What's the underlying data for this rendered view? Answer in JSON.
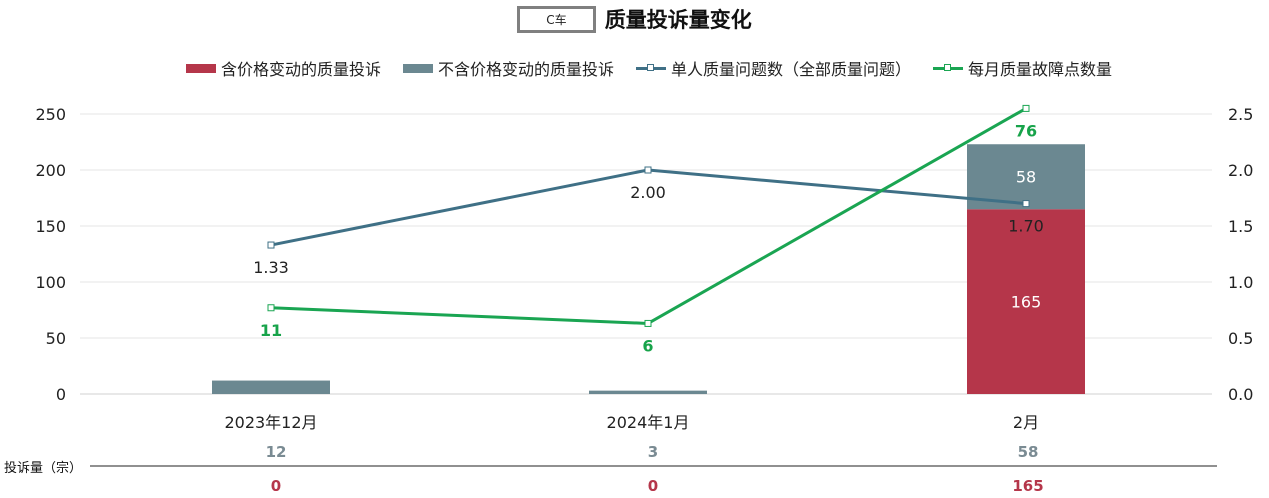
{
  "title": {
    "box_label": "C车",
    "text": "质量投诉量变化"
  },
  "legend": [
    {
      "label": "含价格变动的质量投诉",
      "color": "#b5364a",
      "kind": "bar"
    },
    {
      "label": "不含价格变动的质量投诉",
      "color": "#6b8891",
      "kind": "bar"
    },
    {
      "label": "单人质量问题数（全部质量问题）",
      "color": "#3f7086",
      "kind": "line"
    },
    {
      "label": "每月质量故障点数量",
      "color": "#1aa552",
      "kind": "line"
    }
  ],
  "table": {
    "row_label": "投诉量（宗）",
    "gray_row": [
      "12",
      "3",
      "58"
    ],
    "red_row": [
      "0",
      "0",
      "165"
    ]
  },
  "chart_data": {
    "type": "bar",
    "categories": [
      "2023年12月",
      "2024年1月",
      "2月"
    ],
    "left_axis": {
      "ylim": [
        0,
        250
      ],
      "ticks": [
        "0",
        "50",
        "100",
        "150",
        "200",
        "250"
      ]
    },
    "right_axis": {
      "ylim": [
        0,
        2.5
      ],
      "ticks": [
        "0.0",
        "0.5",
        "1.0",
        "1.5",
        "2.0",
        "2.5"
      ]
    },
    "series": [
      {
        "name": "含价格变动的质量投诉",
        "kind": "bar",
        "stack": "s",
        "axis": "left",
        "color": "#b5364a",
        "values": [
          0,
          0,
          165
        ],
        "labels": [
          "",
          "",
          "165"
        ]
      },
      {
        "name": "不含价格变动的质量投诉",
        "kind": "bar",
        "stack": "s",
        "axis": "left",
        "color": "#6b8891",
        "values": [
          12,
          3,
          58
        ],
        "labels": [
          "",
          "",
          "58"
        ]
      },
      {
        "name": "单人质量问题数（全部质量问题）",
        "kind": "line",
        "axis": "right",
        "color": "#3f7086",
        "values": [
          1.33,
          2.0,
          1.7
        ],
        "labels": [
          "1.33",
          "2.00",
          "1.70"
        ]
      },
      {
        "name": "每月质量故障点数量",
        "kind": "line",
        "axis": "right",
        "color": "#1aa552",
        "values": [
          0.77,
          0.63,
          2.55
        ],
        "labels": [
          "11",
          "6",
          "76"
        ]
      }
    ],
    "grid": true,
    "legend_position": "top"
  }
}
